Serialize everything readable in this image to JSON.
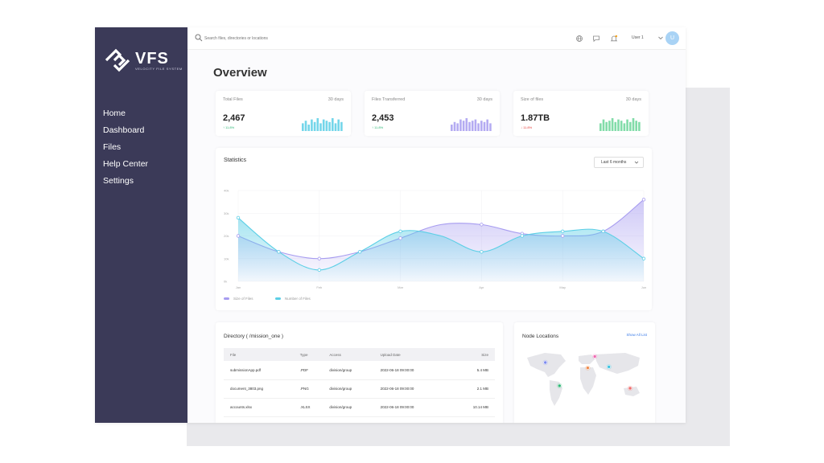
{
  "brand": {
    "name": "VFS",
    "tagline": "VELOCITY FILE SYSTEM"
  },
  "nav": {
    "items": [
      "Home",
      "Dashboard",
      "Files",
      "Help Center",
      "Settings"
    ]
  },
  "topbar": {
    "search_placeholder": "Search files, directories or locations",
    "user_name": "User 1",
    "avatar_initial": "U"
  },
  "page": {
    "title": "Overview"
  },
  "stats": [
    {
      "label": "Total Files",
      "period": "30 days",
      "value": "2,467",
      "change": "11.8%",
      "direction": "up",
      "color": "#5ccfe6"
    },
    {
      "label": "Files Transferred",
      "period": "30 days",
      "value": "2,453",
      "change": "11.8%",
      "direction": "up",
      "color": "#a79cf0"
    },
    {
      "label": "Size of files",
      "period": "30 days",
      "value": "1.87TB",
      "change": "11.8%",
      "direction": "down",
      "color": "#6cd69a"
    }
  ],
  "statistics": {
    "title": "Statistics",
    "period_selected": "Last 6 months"
  },
  "chart_data": {
    "type": "area",
    "title": "Statistics",
    "categories": [
      "Jan",
      "Feb",
      "Mar",
      "Apr",
      "May",
      "Jun"
    ],
    "y_ticks": [
      "0k",
      "10k",
      "20k",
      "30k",
      "40k"
    ],
    "ylim": [
      0,
      40
    ],
    "series": [
      {
        "name": "Size of Files",
        "color": "#a79cf0",
        "x": [
          0,
          0.5,
          1,
          1.5,
          2,
          2.5,
          3,
          3.5,
          4,
          4.5,
          5
        ],
        "values": [
          20,
          13,
          10,
          13,
          19,
          25,
          25,
          21,
          20,
          22,
          36
        ]
      },
      {
        "name": "Number of Files",
        "color": "#5ccfe6",
        "x": [
          0,
          0.5,
          1,
          1.5,
          2,
          2.5,
          3,
          3.5,
          4,
          4.5,
          5
        ],
        "values": [
          28,
          13,
          5,
          13,
          22,
          20,
          13,
          20,
          22,
          22,
          10
        ]
      }
    ],
    "legend_position": "bottom-left"
  },
  "directory": {
    "title": "Directory ( /mission_one )",
    "columns": [
      "File",
      "Type",
      "Access",
      "Upload Date",
      "Size"
    ],
    "rows": [
      [
        "submissionApp.pdf",
        ".PDF",
        "division/group",
        "2022-06-18 09:00:00",
        "5.4 MB"
      ],
      [
        "document_3803.png",
        ".PNG",
        "division/group",
        "2022-06-18 09:00:00",
        "2.1 MB"
      ],
      [
        "accounts.xlsx",
        ".XLSX",
        "division/group",
        "2022-06-18 09:00:00",
        "10.14 MB"
      ]
    ]
  },
  "nodes": {
    "title": "Node Locations",
    "link": "Show All List",
    "markers": [
      {
        "lon": -110,
        "lat": 45,
        "color": "#7c8af0"
      },
      {
        "lon": -70,
        "lat": -20,
        "color": "#2bb673"
      },
      {
        "lon": 30,
        "lat": 62,
        "color": "#f06bb3"
      },
      {
        "lon": 10,
        "lat": 30,
        "color": "#f08a4b"
      },
      {
        "lon": 70,
        "lat": 33,
        "color": "#3cc3e0"
      },
      {
        "lon": 130,
        "lat": -27,
        "color": "#f06b6b"
      }
    ]
  }
}
